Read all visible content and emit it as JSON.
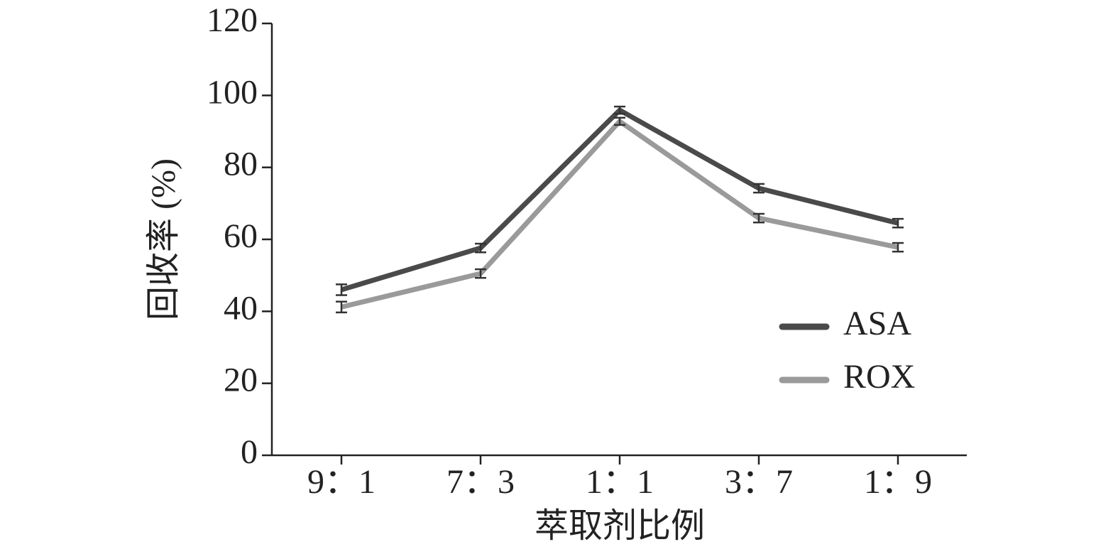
{
  "chart_data": {
    "type": "line",
    "x_label": "萃取剂比例",
    "y_label": "回收率 (%)",
    "categories": [
      "9：1",
      "7：3",
      "1：1",
      "3：7",
      "1：9"
    ],
    "series": [
      {
        "name": "ASA",
        "color": "#4a4a4a",
        "values": [
          46.0,
          57.6,
          95.9,
          74.2,
          64.5
        ],
        "errors": [
          1.5,
          1.2,
          1.0,
          1.2,
          1.2
        ]
      },
      {
        "name": "ROX",
        "color": "#9a9a9a",
        "values": [
          41.2,
          50.5,
          92.8,
          65.9,
          57.8
        ],
        "errors": [
          1.5,
          1.2,
          1.0,
          1.2,
          1.2
        ]
      }
    ],
    "ylim": [
      0,
      120
    ],
    "yticks": [
      0,
      20,
      40,
      60,
      80,
      100,
      120
    ],
    "legend": "lower-right",
    "grid": false
  }
}
